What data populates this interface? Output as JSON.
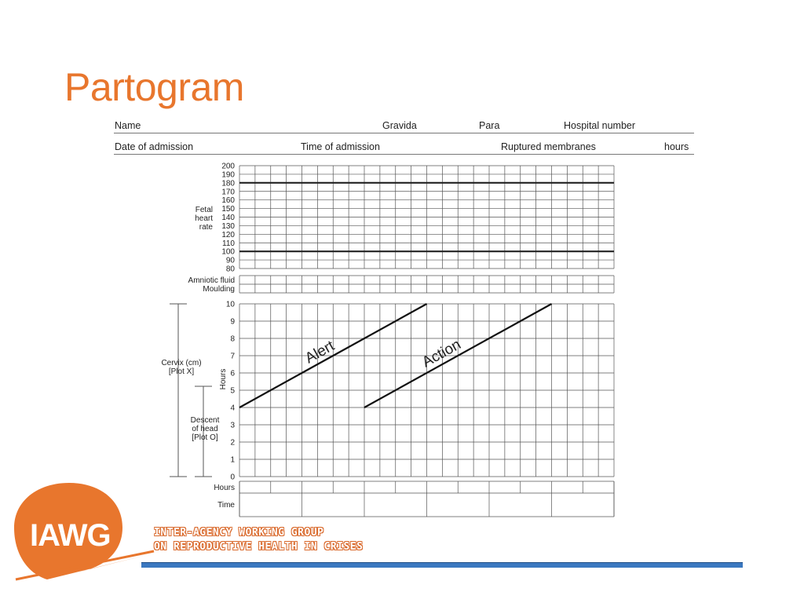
{
  "slide": {
    "title": "Partogram"
  },
  "form": {
    "row1": {
      "name": "Name",
      "gravida": "Gravida",
      "para": "Para",
      "hospital_number": "Hospital number"
    },
    "row2": {
      "date_of_admission": "Date of admission",
      "time_of_admission": "Time of admission",
      "ruptured_membranes": "Ruptured membranes",
      "hours": "hours"
    }
  },
  "fetal_heart": {
    "label_lines": [
      "Fetal",
      "heart",
      "rate"
    ],
    "ticks": [
      "200",
      "190",
      "180",
      "170",
      "160",
      "150",
      "140",
      "130",
      "120",
      "110",
      "100",
      "90",
      "80"
    ],
    "bold_lines": [
      180,
      100
    ]
  },
  "fluid": {
    "labels": [
      "Amniotic fluid",
      "Moulding"
    ]
  },
  "cervix": {
    "ticks": [
      "10",
      "9",
      "8",
      "7",
      "6",
      "5",
      "4",
      "3",
      "2",
      "1",
      "0"
    ],
    "cervix_label": [
      "Cervix (cm)",
      "[Plot X]"
    ],
    "descent_label": [
      "Descent",
      "of head",
      "[Plot O]"
    ],
    "hours_vertical": "Hours",
    "alert_label": "Alert",
    "action_label": "Action",
    "alert_line": {
      "from_hour": 0,
      "from_cm": 4,
      "to_hour": 6,
      "to_cm": 10
    },
    "action_line": {
      "from_hour": 4,
      "from_cm": 4,
      "to_hour": 10,
      "to_cm": 10
    }
  },
  "bottom_rows": {
    "hours": "Hours",
    "time": "Time"
  },
  "footer": {
    "logo_text": "IAWG",
    "org_line1": "INTER-AGENCY WORKING GROUP",
    "org_line2": "ON REPRODUCTIVE HEALTH IN CRISES",
    "colors": {
      "orange": "#e8762d",
      "blue": "#3a78c0"
    }
  }
}
